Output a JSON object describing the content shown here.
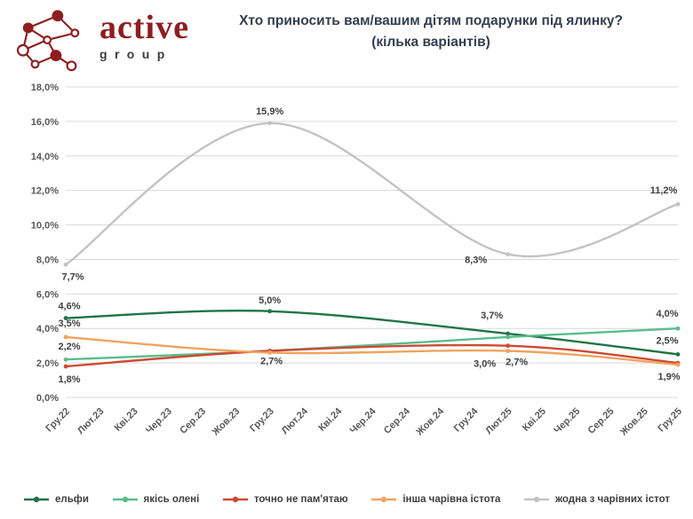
{
  "logo": {
    "brand": "active",
    "group": "group"
  },
  "header": {
    "title_line1": "Хто приносить вам/вашим дітям подарунки під ялинку?",
    "title_line2": "(кілька варіантів)"
  },
  "colors": {
    "brand_red": "#8e1d20",
    "title_text": "#333f50",
    "axis_text": "#595959",
    "gridline": "#d9d9d9",
    "data_label": "#3f3f3f"
  },
  "chart_data": {
    "type": "line",
    "title": "Хто приносить вам/вашим дітям подарунки під ялинку?",
    "subtitle": "(кілька варіантів)",
    "xlabel": "",
    "ylabel": "",
    "grid": true,
    "legend_position": "bottom",
    "ylim": [
      0,
      18
    ],
    "y_tick_step": 2,
    "y_tick_labels": [
      "0,0%",
      "2,0%",
      "4,0%",
      "6,0%",
      "8,0%",
      "10,0%",
      "12,0%",
      "14,0%",
      "16,0%",
      "18,0%"
    ],
    "x_categories": [
      "Гру.22",
      "Лют.23",
      "Кві.23",
      "Чер.23",
      "Сер.23",
      "Жов.23",
      "Гру.23",
      "Лют.24",
      "Кві.24",
      "Чер.24",
      "Сер.24",
      "Жов.24",
      "Гру.24",
      "Лют.25",
      "Кві.25",
      "Чер.25",
      "Сер.25",
      "Жов.25",
      "Гру.25"
    ],
    "wave_indices": [
      0,
      6,
      13,
      18
    ],
    "series": [
      {
        "name": "ельфи",
        "color": "#1f7446",
        "values": [
          4.6,
          5.0,
          3.7,
          2.5
        ],
        "labels": [
          "4,6%",
          "5,0%",
          "3,7%",
          "2,5%"
        ],
        "label_offsets": [
          [
            4,
            -10
          ],
          [
            0,
            -9
          ],
          [
            -18,
            -17
          ],
          [
            -12,
            -12
          ]
        ]
      },
      {
        "name": "якісь олені",
        "color": "#58bd8d",
        "values": [
          2.2,
          2.7,
          3.5,
          4.0
        ],
        "labels": [
          "2,2%",
          null,
          null,
          "4,0%"
        ],
        "label_offsets": [
          [
            4,
            -11
          ],
          null,
          null,
          [
            -12,
            -13
          ]
        ]
      },
      {
        "name": "точно не пам'ятаю",
        "color": "#cd4a33",
        "values": [
          1.8,
          2.7,
          3.0,
          2.0
        ],
        "labels": [
          "1,8%",
          "2,7%",
          "3,0%",
          null
        ],
        "label_offsets": [
          [
            4,
            18
          ],
          [
            2,
            15
          ],
          [
            -26,
            24
          ],
          null
        ]
      },
      {
        "name": "інша чарівна істота",
        "color": "#f0a35e",
        "values": [
          3.5,
          2.6,
          2.7,
          1.9
        ],
        "labels": [
          "3,5%",
          null,
          "2,7%",
          "1,9%"
        ],
        "label_offsets": [
          [
            4,
            -12
          ],
          null,
          [
            10,
            16
          ],
          [
            -10,
            17
          ]
        ]
      },
      {
        "name": "жодна з чарівних істот",
        "color": "#c3c3c3",
        "values": [
          7.7,
          15.9,
          8.3,
          11.2
        ],
        "labels": [
          "7,7%",
          "15,9%",
          "8,3%",
          "11,2%"
        ],
        "label_offsets": [
          [
            8,
            17
          ],
          [
            0,
            -10
          ],
          [
            -36,
            10
          ],
          [
            -16,
            -12
          ]
        ]
      }
    ]
  }
}
